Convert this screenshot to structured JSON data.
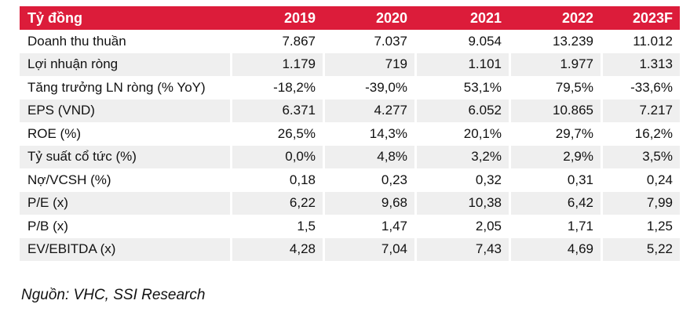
{
  "colors": {
    "header_bg": "#DC1C3A",
    "header_text": "#FFFFFF",
    "stripe_bg": "#EFEFEF",
    "text": "#111111"
  },
  "table": {
    "unit_label": "Tỷ đồng",
    "columns": [
      "2019",
      "2020",
      "2021",
      "2022",
      "2023F"
    ],
    "rows": [
      {
        "label": "Doanh thu thuần",
        "values": [
          "7.867",
          "7.037",
          "9.054",
          "13.239",
          "11.012"
        ]
      },
      {
        "label": "Lợi nhuận ròng",
        "values": [
          "1.179",
          "719",
          "1.101",
          "1.977",
          "1.313"
        ]
      },
      {
        "label": "Tăng trưởng LN ròng (% YoY)",
        "values": [
          "-18,2%",
          "-39,0%",
          "53,1%",
          "79,5%",
          "-33,6%"
        ]
      },
      {
        "label": "EPS (VND)",
        "values": [
          "6.371",
          "4.277",
          "6.052",
          "10.865",
          "7.217"
        ]
      },
      {
        "label": "ROE (%)",
        "values": [
          "26,5%",
          "14,3%",
          "20,1%",
          "29,7%",
          "16,2%"
        ]
      },
      {
        "label": "Tỷ suất cổ tức (%)",
        "values": [
          "0,0%",
          "4,8%",
          "3,2%",
          "2,9%",
          "3,5%"
        ]
      },
      {
        "label": "Nợ/VCSH (%)",
        "values": [
          "0,18",
          "0,23",
          "0,32",
          "0,31",
          "0,24"
        ]
      },
      {
        "label": "P/E (x)",
        "values": [
          "6,22",
          "9,68",
          "10,38",
          "6,42",
          "7,99"
        ]
      },
      {
        "label": "P/B (x)",
        "values": [
          "1,5",
          "1,47",
          "2,05",
          "1,71",
          "1,25"
        ]
      },
      {
        "label": "EV/EBITDA (x)",
        "values": [
          "4,28",
          "7,04",
          "7,43",
          "4,69",
          "5,22"
        ]
      }
    ]
  },
  "footer": {
    "source": "Nguồn: VHC, SSI Research"
  }
}
